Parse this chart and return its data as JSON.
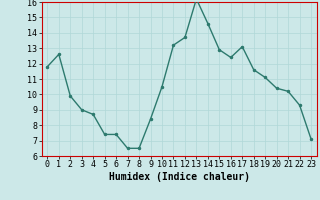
{
  "x": [
    0,
    1,
    2,
    3,
    4,
    5,
    6,
    7,
    8,
    9,
    10,
    11,
    12,
    13,
    14,
    15,
    16,
    17,
    18,
    19,
    20,
    21,
    22,
    23
  ],
  "y": [
    11.8,
    12.6,
    9.9,
    9.0,
    8.7,
    7.4,
    7.4,
    6.5,
    6.5,
    8.4,
    10.5,
    13.2,
    13.7,
    16.2,
    14.6,
    12.9,
    12.4,
    13.1,
    11.6,
    11.1,
    10.4,
    10.2,
    9.3,
    7.1
  ],
  "xlabel": "Humidex (Indice chaleur)",
  "ylim": [
    6,
    16
  ],
  "xlim_min": -0.5,
  "xlim_max": 23.5,
  "yticks": [
    6,
    7,
    8,
    9,
    10,
    11,
    12,
    13,
    14,
    15,
    16
  ],
  "xticks": [
    0,
    1,
    2,
    3,
    4,
    5,
    6,
    7,
    8,
    9,
    10,
    11,
    12,
    13,
    14,
    15,
    16,
    17,
    18,
    19,
    20,
    21,
    22,
    23
  ],
  "line_color": "#2d7a6e",
  "marker_color": "#2d7a6e",
  "bg_color": "#cce8e8",
  "grid_color": "#b0d8d8",
  "axes_bg": "#cce8e8",
  "spine_color": "#cc0000",
  "xlabel_fontsize": 7,
  "tick_fontsize": 6,
  "linewidth": 1.0,
  "markersize": 3
}
